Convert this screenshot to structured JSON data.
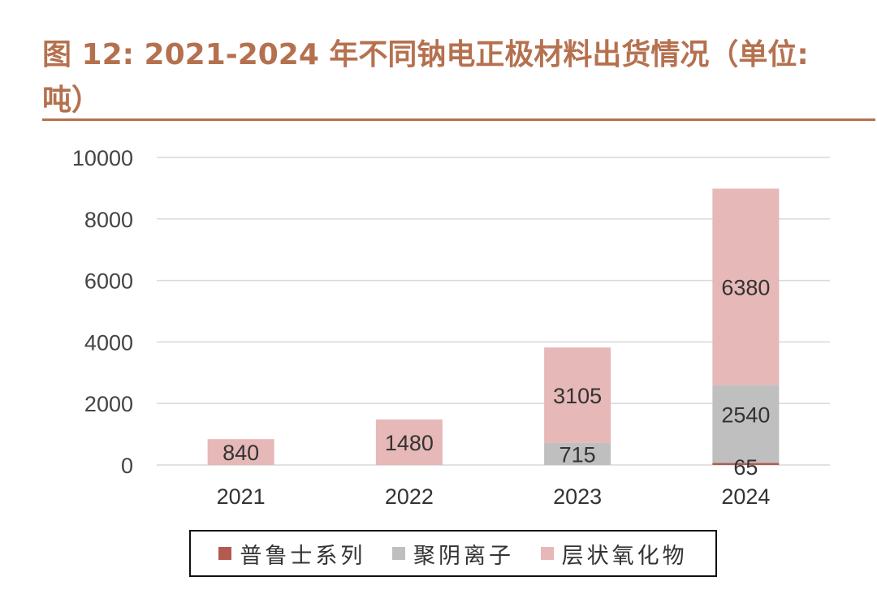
{
  "title": "图 12: 2021-2024 年不同钠电正极材料出货情况（单位: 吨）",
  "chart_data": {
    "type": "bar",
    "stacked": true,
    "categories": [
      "2021",
      "2022",
      "2023",
      "2024"
    ],
    "series": [
      {
        "name": "普鲁士系列",
        "values": [
          0,
          0,
          0,
          65
        ],
        "color": "#b55a50"
      },
      {
        "name": "聚阴离子",
        "values": [
          0,
          0,
          715,
          2540
        ],
        "color": "#bfbfbf"
      },
      {
        "name": "层状氧化物",
        "values": [
          840,
          1480,
          3105,
          6380
        ],
        "color": "#e6b8b7"
      }
    ],
    "data_labels": [
      {
        "category": "2021",
        "series": "层状氧化物",
        "text": "840"
      },
      {
        "category": "2022",
        "series": "层状氧化物",
        "text": "1480"
      },
      {
        "category": "2023",
        "series": "聚阴离子",
        "text": "715"
      },
      {
        "category": "2023",
        "series": "层状氧化物",
        "text": "3105"
      },
      {
        "category": "2024",
        "series": "普鲁士系列",
        "text": "65"
      },
      {
        "category": "2024",
        "series": "聚阴离子",
        "text": "2540"
      },
      {
        "category": "2024",
        "series": "层状氧化物",
        "text": "6380"
      }
    ],
    "yticks": [
      "0",
      "2000",
      "4000",
      "6000",
      "8000",
      "10000"
    ],
    "ylim": [
      0,
      10000
    ],
    "grid": true,
    "legend_position": "bottom",
    "xlabel": "",
    "ylabel": ""
  },
  "legend": [
    {
      "label": "普鲁士系列",
      "color": "#b55a50"
    },
    {
      "label": "聚阴离子",
      "color": "#bfbfbf"
    },
    {
      "label": "层状氧化物",
      "color": "#e6b8b7"
    }
  ]
}
